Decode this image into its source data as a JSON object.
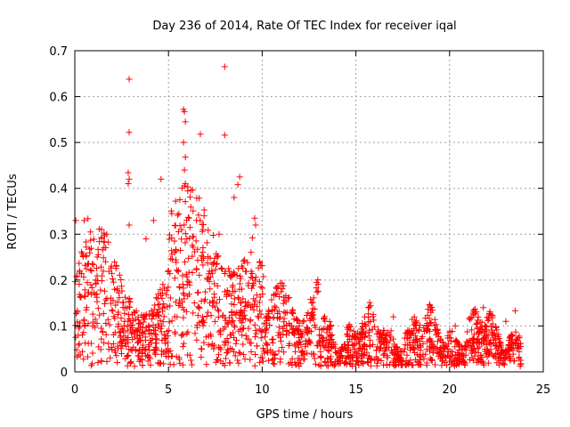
{
  "chart_data": {
    "type": "scatter",
    "title": "Day 236 of 2014, Rate Of TEC Index for receiver iqal",
    "xlabel": "GPS time / hours",
    "ylabel": "ROTI / TECUs",
    "xlim": [
      0,
      25
    ],
    "ylim": [
      0,
      0.7
    ],
    "x_ticks": [
      0,
      5,
      10,
      15,
      20,
      25
    ],
    "y_ticks": [
      0,
      0.1,
      0.2,
      0.3,
      0.4,
      0.5,
      0.6,
      0.7
    ],
    "x_tick_labels": [
      "0",
      "5",
      "10",
      "15",
      "20",
      "25"
    ],
    "y_tick_labels": [
      "0",
      "0.1",
      "0.2",
      "0.3",
      "0.4",
      "0.5",
      "0.6",
      "0.7"
    ],
    "grid": true,
    "marker": "plus",
    "color": "#ff0000",
    "series": [
      {
        "name": "ROTI",
        "points": [
          [
            2.9,
            0.638
          ],
          [
            2.9,
            0.522
          ],
          [
            2.85,
            0.434
          ],
          [
            2.9,
            0.42
          ],
          [
            2.85,
            0.41
          ],
          [
            4.6,
            0.42
          ],
          [
            5.8,
            0.572
          ],
          [
            5.85,
            0.567
          ],
          [
            5.9,
            0.545
          ],
          [
            5.8,
            0.5
          ],
          [
            5.9,
            0.468
          ],
          [
            5.85,
            0.44
          ],
          [
            5.9,
            0.41
          ],
          [
            5.85,
            0.405
          ],
          [
            6.7,
            0.518
          ],
          [
            8.0,
            0.665
          ],
          [
            8.0,
            0.516
          ],
          [
            8.8,
            0.425
          ],
          [
            8.7,
            0.408
          ],
          [
            8.5,
            0.38
          ],
          [
            0.7,
            0.334
          ],
          [
            0.5,
            0.33
          ],
          [
            0.05,
            0.33
          ],
          [
            2.9,
            0.32
          ],
          [
            4.2,
            0.33
          ],
          [
            6.9,
            0.34
          ],
          [
            9.6,
            0.335
          ],
          [
            9.65,
            0.32
          ],
          [
            7.7,
            0.3
          ],
          [
            5.7,
            0.31
          ],
          [
            1.7,
            0.3
          ],
          [
            3.8,
            0.29
          ],
          [
            10.3,
            0.12
          ],
          [
            12.7,
            0.138
          ],
          [
            11.7,
            0.115
          ],
          [
            17.0,
            0.12
          ],
          [
            21.8,
            0.14
          ],
          [
            23.5,
            0.133
          ],
          [
            20.3,
            0.1
          ],
          [
            15.1,
            0.085
          ],
          [
            18.8,
            0.09
          ],
          [
            23.0,
            0.11
          ]
        ]
      }
    ]
  }
}
